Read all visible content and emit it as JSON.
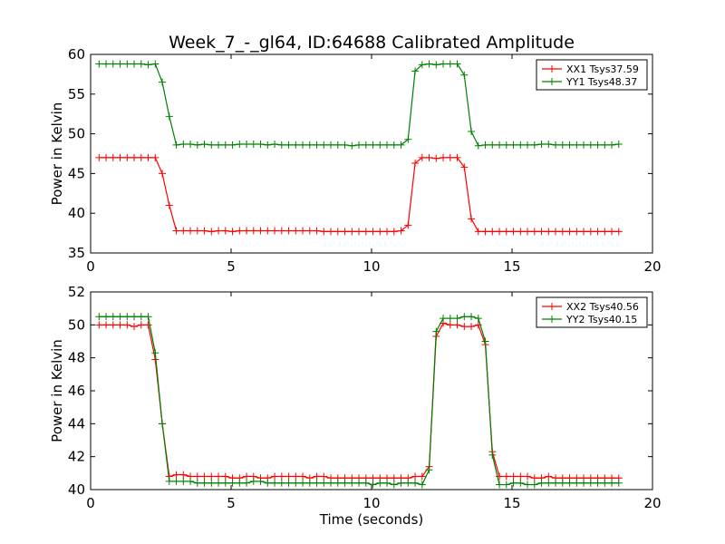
{
  "title": "Week_7_-_gl64, ID:64688 Calibrated Amplitude",
  "chart_data": [
    {
      "type": "line",
      "title": "Week_7_-_gl64, ID:64688 Calibrated Amplitude",
      "xlabel": "",
      "ylabel": "Power in Kelvin",
      "xlim": [
        0,
        20
      ],
      "ylim": [
        35,
        60
      ],
      "xticks": [
        0,
        5,
        10,
        15,
        20
      ],
      "yticks": [
        35,
        40,
        45,
        50,
        55,
        60
      ],
      "grid": false,
      "legend_position": "top-right",
      "x": [
        0.3,
        0.55,
        0.8,
        1.05,
        1.3,
        1.55,
        1.8,
        2.05,
        2.3,
        2.55,
        2.8,
        3.05,
        3.3,
        3.55,
        3.8,
        4.05,
        4.3,
        4.55,
        4.8,
        5.05,
        5.3,
        5.55,
        5.8,
        6.05,
        6.3,
        6.55,
        6.8,
        7.05,
        7.3,
        7.55,
        7.8,
        8.05,
        8.3,
        8.55,
        8.8,
        9.05,
        9.3,
        9.55,
        9.8,
        10.05,
        10.3,
        10.55,
        10.8,
        11.05,
        11.3,
        11.55,
        11.8,
        12.05,
        12.3,
        12.55,
        12.8,
        13.05,
        13.3,
        13.55,
        13.8,
        14.05,
        14.3,
        14.55,
        14.8,
        15.05,
        15.3,
        15.55,
        15.8,
        16.05,
        16.3,
        16.55,
        16.8,
        17.05,
        17.3,
        17.55,
        17.8,
        18.05,
        18.3,
        18.55,
        18.8
      ],
      "series": [
        {
          "name": "XX1 Tsys37.59",
          "color": "#ff0000",
          "values": [
            47.0,
            47.0,
            47.0,
            47.0,
            47.0,
            47.0,
            47.0,
            47.0,
            47.0,
            45.0,
            41.0,
            37.8,
            37.8,
            37.8,
            37.8,
            37.8,
            37.7,
            37.8,
            37.8,
            37.7,
            37.8,
            37.8,
            37.8,
            37.8,
            37.8,
            37.8,
            37.8,
            37.8,
            37.8,
            37.8,
            37.8,
            37.8,
            37.7,
            37.7,
            37.7,
            37.7,
            37.7,
            37.7,
            37.7,
            37.7,
            37.7,
            37.7,
            37.7,
            37.8,
            38.5,
            46.3,
            47.0,
            47.0,
            46.9,
            47.0,
            47.0,
            47.0,
            45.8,
            39.3,
            37.7,
            37.7,
            37.7,
            37.7,
            37.7,
            37.7,
            37.7,
            37.7,
            37.7,
            37.7,
            37.7,
            37.7,
            37.7,
            37.7,
            37.7,
            37.7,
            37.7,
            37.7,
            37.7,
            37.7,
            37.7
          ]
        },
        {
          "name": "YY1 Tsys48.37",
          "color": "#008000",
          "values": [
            58.8,
            58.8,
            58.8,
            58.8,
            58.8,
            58.8,
            58.8,
            58.7,
            58.8,
            56.5,
            52.2,
            48.6,
            48.7,
            48.7,
            48.6,
            48.7,
            48.6,
            48.6,
            48.6,
            48.6,
            48.7,
            48.7,
            48.7,
            48.7,
            48.6,
            48.7,
            48.6,
            48.6,
            48.6,
            48.6,
            48.6,
            48.6,
            48.6,
            48.6,
            48.6,
            48.6,
            48.5,
            48.6,
            48.6,
            48.6,
            48.6,
            48.6,
            48.6,
            48.6,
            49.3,
            57.9,
            58.7,
            58.8,
            58.7,
            58.8,
            58.8,
            58.8,
            57.4,
            50.3,
            48.5,
            48.6,
            48.6,
            48.6,
            48.6,
            48.6,
            48.6,
            48.6,
            48.6,
            48.7,
            48.7,
            48.6,
            48.6,
            48.6,
            48.6,
            48.6,
            48.6,
            48.6,
            48.6,
            48.6,
            48.7
          ]
        }
      ]
    },
    {
      "type": "line",
      "title": "",
      "xlabel": "Time (seconds)",
      "ylabel": "Power in Kelvin",
      "xlim": [
        0,
        20
      ],
      "ylim": [
        40,
        52
      ],
      "xticks": [
        0,
        5,
        10,
        15,
        20
      ],
      "yticks": [
        40,
        42,
        44,
        46,
        48,
        50,
        52
      ],
      "grid": false,
      "legend_position": "top-right",
      "x": [
        0.3,
        0.55,
        0.8,
        1.05,
        1.3,
        1.55,
        1.8,
        2.05,
        2.3,
        2.55,
        2.8,
        3.05,
        3.3,
        3.55,
        3.8,
        4.05,
        4.3,
        4.55,
        4.8,
        5.05,
        5.3,
        5.55,
        5.8,
        6.05,
        6.3,
        6.55,
        6.8,
        7.05,
        7.3,
        7.55,
        7.8,
        8.05,
        8.3,
        8.55,
        8.8,
        9.05,
        9.3,
        9.55,
        9.8,
        10.05,
        10.3,
        10.55,
        10.8,
        11.05,
        11.3,
        11.55,
        11.8,
        12.05,
        12.3,
        12.55,
        12.8,
        13.05,
        13.3,
        13.55,
        13.8,
        14.05,
        14.3,
        14.55,
        14.8,
        15.05,
        15.3,
        15.55,
        15.8,
        16.05,
        16.3,
        16.55,
        16.8,
        17.05,
        17.3,
        17.55,
        17.8,
        18.05,
        18.3,
        18.55,
        18.8
      ],
      "series": [
        {
          "name": "XX2 Tsys40.56",
          "color": "#ff0000",
          "values": [
            50.0,
            50.0,
            50.0,
            50.0,
            50.0,
            49.9,
            50.0,
            50.0,
            47.9,
            44.0,
            40.8,
            40.9,
            40.9,
            40.8,
            40.8,
            40.8,
            40.8,
            40.8,
            40.8,
            40.7,
            40.7,
            40.8,
            40.8,
            40.7,
            40.7,
            40.8,
            40.8,
            40.8,
            40.8,
            40.8,
            40.7,
            40.8,
            40.8,
            40.7,
            40.7,
            40.7,
            40.7,
            40.7,
            40.7,
            40.7,
            40.7,
            40.7,
            40.7,
            40.7,
            40.7,
            40.8,
            40.8,
            41.4,
            49.3,
            50.1,
            50.0,
            50.0,
            49.9,
            49.9,
            50.0,
            48.8,
            42.3,
            40.8,
            40.8,
            40.8,
            40.8,
            40.8,
            40.7,
            40.7,
            40.8,
            40.7,
            40.7,
            40.7,
            40.7,
            40.7,
            40.7,
            40.7,
            40.7,
            40.7,
            40.7
          ]
        },
        {
          "name": "YY2 Tsys40.15",
          "color": "#008000",
          "values": [
            50.5,
            50.5,
            50.5,
            50.5,
            50.5,
            50.5,
            50.5,
            50.5,
            48.3,
            44.0,
            40.5,
            40.5,
            40.5,
            40.5,
            40.4,
            40.4,
            40.4,
            40.4,
            40.4,
            40.4,
            40.4,
            40.4,
            40.5,
            40.5,
            40.4,
            40.4,
            40.4,
            40.4,
            40.4,
            40.4,
            40.4,
            40.4,
            40.4,
            40.4,
            40.4,
            40.4,
            40.4,
            40.4,
            40.4,
            40.3,
            40.4,
            40.4,
            40.3,
            40.4,
            40.4,
            40.4,
            40.3,
            41.2,
            49.6,
            50.4,
            50.4,
            50.4,
            50.5,
            50.5,
            50.4,
            49.0,
            42.1,
            40.3,
            40.3,
            40.4,
            40.4,
            40.3,
            40.3,
            40.4,
            40.4,
            40.4,
            40.4,
            40.4,
            40.4,
            40.4,
            40.4,
            40.4,
            40.4,
            40.4,
            40.4
          ]
        }
      ]
    }
  ]
}
